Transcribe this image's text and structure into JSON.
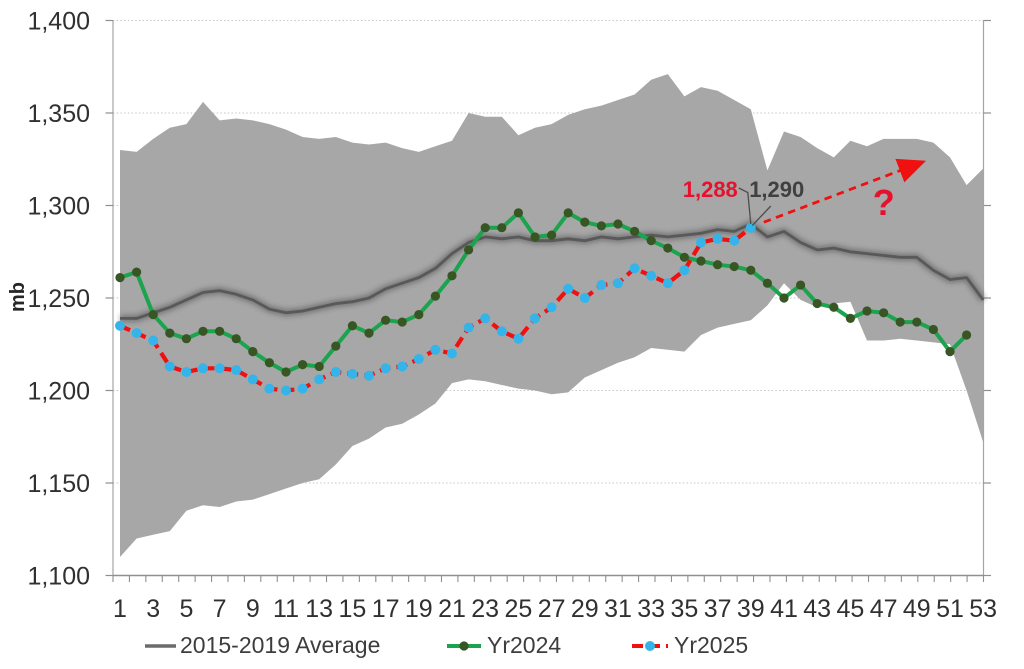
{
  "chart_data": {
    "type": "line",
    "title": "",
    "xlabel": "",
    "ylabel": "mb",
    "ylim": [
      1100,
      1400
    ],
    "y_tick_step": 50,
    "grid": "horizontal-dotted",
    "legend_position": "bottom",
    "y_ticks": [
      {
        "value": 1100,
        "label": "1,100"
      },
      {
        "value": 1150,
        "label": "1,150"
      },
      {
        "value": 1200,
        "label": "1,200"
      },
      {
        "value": 1250,
        "label": "1,250"
      },
      {
        "value": 1300,
        "label": "1,300"
      },
      {
        "value": 1350,
        "label": "1,350"
      },
      {
        "value": 1400,
        "label": "1,400"
      }
    ],
    "x_ticks": [
      1,
      3,
      5,
      7,
      9,
      11,
      13,
      15,
      17,
      19,
      21,
      23,
      25,
      27,
      29,
      31,
      33,
      35,
      37,
      39,
      41,
      43,
      45,
      47,
      49,
      51,
      53
    ],
    "x_weeks_total": 53,
    "band": {
      "name": "2015-2019 min-max range",
      "color": "#a7a7a7",
      "start_week": 1,
      "upper": [
        1330,
        1329,
        1336,
        1342,
        1344,
        1356,
        1346,
        1347,
        1346,
        1344,
        1341,
        1337,
        1336,
        1337,
        1334,
        1333,
        1334,
        1331,
        1329,
        1332,
        1335,
        1350,
        1348,
        1348,
        1338,
        1342,
        1344,
        1349,
        1352,
        1354,
        1357,
        1360,
        1368,
        1371,
        1359,
        1364,
        1362,
        1357,
        1352,
        1319,
        1340,
        1337,
        1331,
        1326,
        1335,
        1332,
        1336,
        1336,
        1336,
        1334,
        1326,
        1311,
        1320
      ],
      "lower": [
        1110,
        1120,
        1122,
        1124,
        1135,
        1138,
        1137,
        1140,
        1141,
        1144,
        1147,
        1150,
        1152,
        1160,
        1170,
        1174,
        1180,
        1182,
        1187,
        1193,
        1204,
        1206,
        1205,
        1203,
        1201,
        1200,
        1198,
        1199,
        1207,
        1211,
        1215,
        1218,
        1223,
        1222,
        1221,
        1230,
        1234,
        1236,
        1238,
        1246,
        1258,
        1249,
        1245,
        1247,
        1248,
        1227,
        1227,
        1228,
        1227,
        1226,
        1225,
        1200,
        1172
      ]
    },
    "series": [
      {
        "name": "2015-2019 Average",
        "style": "solid-glow",
        "color": "#595959",
        "marker": "none",
        "start_week": 1,
        "values": [
          1239,
          1239,
          1242,
          1245,
          1249,
          1253,
          1254,
          1252,
          1249,
          1244,
          1242,
          1243,
          1245,
          1247,
          1248,
          1250,
          1255,
          1258,
          1261,
          1266,
          1274,
          1280,
          1283,
          1282,
          1283,
          1281,
          1281,
          1282,
          1281,
          1283,
          1282,
          1283,
          1284,
          1283,
          1284,
          1285,
          1287,
          1286,
          1290,
          1283,
          1286,
          1280,
          1276,
          1277,
          1275,
          1274,
          1273,
          1272,
          1272,
          1265,
          1260,
          1261,
          1249
        ]
      },
      {
        "name": "Yr2024",
        "style": "solid",
        "color": "#1ba34e",
        "marker": "circle",
        "marker_color": "#375623",
        "start_week": 1,
        "values": [
          1261,
          1264,
          1241,
          1231,
          1228,
          1232,
          1232,
          1228,
          1221,
          1215,
          1210,
          1214,
          1213,
          1224,
          1235,
          1231,
          1238,
          1237,
          1241,
          1251,
          1262,
          1276,
          1288,
          1288,
          1296,
          1283,
          1284,
          1296,
          1291,
          1289,
          1290,
          1286,
          1281,
          1277,
          1272,
          1270,
          1268,
          1267,
          1265,
          1258,
          1250,
          1257,
          1247,
          1245,
          1239,
          1243,
          1242,
          1237,
          1237,
          1233,
          1221,
          1230
        ]
      },
      {
        "name": "Yr2025",
        "style": "dashed",
        "color": "#f01010",
        "marker": "circle",
        "marker_color": "#35b4e9",
        "start_week": 1,
        "values": [
          1235,
          1231,
          1227,
          1213,
          1210,
          1212,
          1212,
          1211,
          1206,
          1201,
          1200,
          1201,
          1206,
          1210,
          1209,
          1208,
          1212,
          1213,
          1217,
          1222,
          1220,
          1234,
          1239,
          1232,
          1228,
          1239,
          1245,
          1255,
          1250,
          1257,
          1258,
          1266,
          1262,
          1258,
          1265,
          1280,
          1282,
          1281,
          1288
        ]
      }
    ],
    "annotations": {
      "yr2025_last_label": "1,288",
      "yr2025_last_week": 39,
      "yr2025_last_value": 1288,
      "average_label": "1,290",
      "average_week": 39,
      "average_value": 1290,
      "question_mark": "?",
      "annotation_red": "#e8112d",
      "annotation_gray": "#404040",
      "arrow_color": "#f01010",
      "arrow_style": "dashed-up-right"
    },
    "legend": [
      {
        "label": "2015-2019 Average"
      },
      {
        "label": "Yr2024"
      },
      {
        "label": "Yr2025"
      }
    ]
  }
}
